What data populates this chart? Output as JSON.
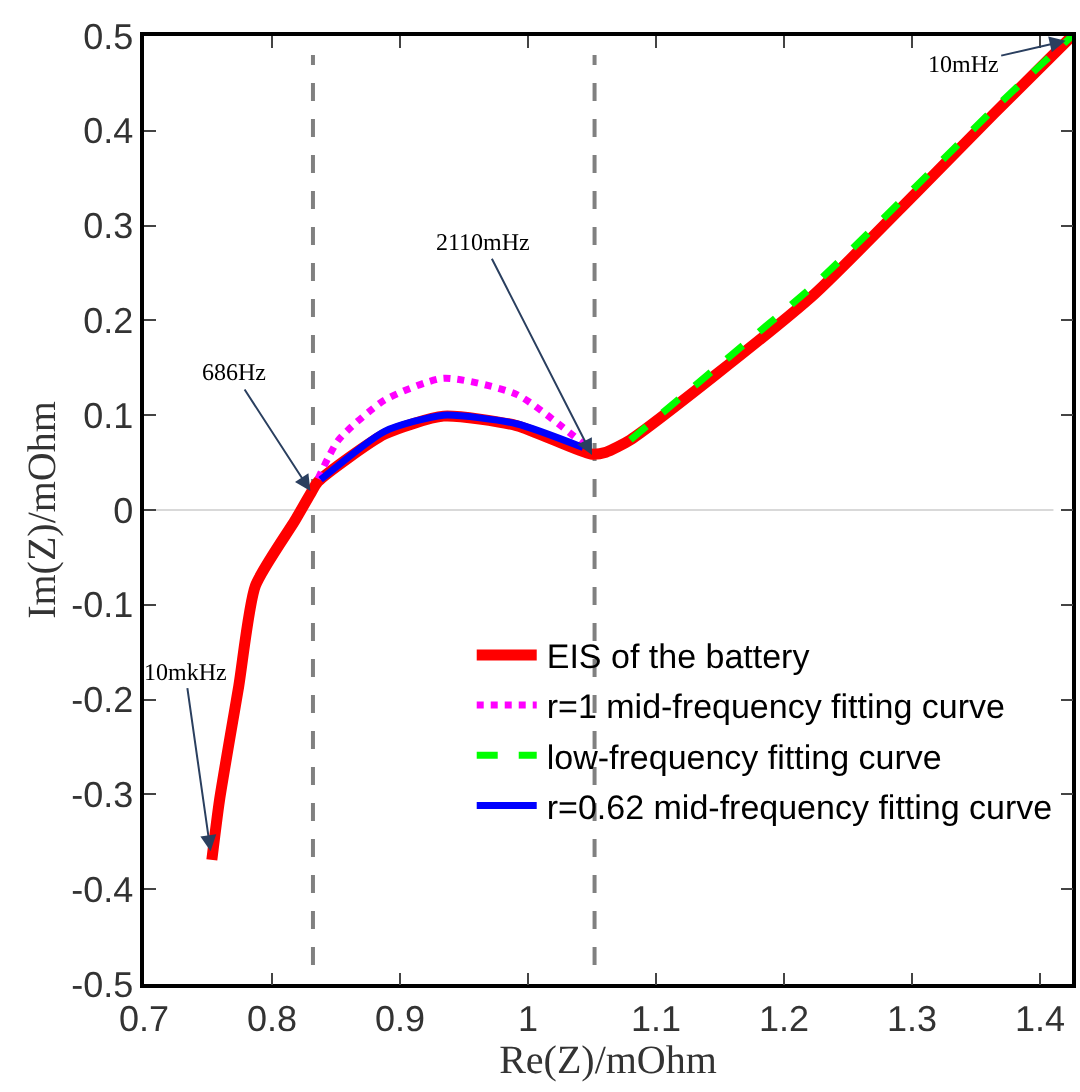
{
  "chart_data": {
    "type": "line",
    "xlabel": "Re(Z)/mOhm",
    "ylabel": "Im(Z)/mOhm",
    "xlim": [
      0.7,
      1.425
    ],
    "ylim": [
      -0.5,
      0.5
    ],
    "xticks": [
      0.7,
      0.8,
      0.9,
      1,
      1.1,
      1.2,
      1.3,
      1.4
    ],
    "yticks": [
      -0.5,
      -0.4,
      -0.3,
      -0.2,
      -0.1,
      0,
      0.1,
      0.2,
      0.3,
      0.4,
      0.5
    ],
    "grid": false,
    "legend": "bottom right",
    "marker": "none",
    "series": [
      {
        "name": "EIS of the battery",
        "color": "#ff0000",
        "line_style": "solid",
        "x": [
          0.753,
          0.759,
          0.774,
          0.787,
          0.818,
          0.83,
          0.836,
          0.888,
          0.934,
          0.991,
          1.049,
          1.061,
          1.08,
          1.147,
          1.224,
          1.302,
          1.364,
          1.425
        ],
        "values": [
          -0.369,
          -0.306,
          -0.186,
          -0.08,
          -0.011,
          0.017,
          0.03,
          0.08,
          0.099,
          0.089,
          0.059,
          0.061,
          0.074,
          0.143,
          0.228,
          0.333,
          0.418,
          0.5
        ]
      },
      {
        "name": "r=1 mid-frequency fitting curve",
        "color": "#ff00ff",
        "line_style": "dotted",
        "x": [
          0.836,
          0.852,
          0.888,
          0.934,
          0.991,
          1.043
        ],
        "values": [
          0.033,
          0.074,
          0.116,
          0.139,
          0.122,
          0.07
        ]
      },
      {
        "name": "low-frequency fitting curve",
        "color": "#00ff00",
        "line_style": "dashed",
        "x": [
          1.08,
          1.147,
          1.224,
          1.302,
          1.364,
          1.425
        ],
        "values": [
          0.074,
          0.15,
          0.238,
          0.34,
          0.423,
          0.5
        ]
      },
      {
        "name": "r=0.62 mid-frequency fitting curve",
        "color": "#0000ff",
        "line_style": "solid",
        "x": [
          0.838,
          0.888,
          0.934,
          0.991,
          1.043
        ],
        "values": [
          0.032,
          0.083,
          0.1,
          0.091,
          0.066
        ]
      }
    ],
    "ref_lines": [
      {
        "axis": "x",
        "value": 0.832,
        "color": "#808080",
        "line_style": "dashed"
      },
      {
        "axis": "x",
        "value": 1.052,
        "color": "#808080",
        "line_style": "dashed"
      },
      {
        "axis": "y",
        "value": 0,
        "color": "#d9d9d9",
        "line_style": "solid"
      }
    ],
    "annotations": [
      {
        "text": "10mkHz",
        "x": 0.752,
        "y": -0.36
      },
      {
        "text": "686Hz",
        "x": 0.83,
        "y": 0.02
      },
      {
        "text": "2110mHz",
        "x": 1.05,
        "y": 0.058
      },
      {
        "text": "10mHz",
        "x": 1.42,
        "y": 0.495
      }
    ]
  }
}
